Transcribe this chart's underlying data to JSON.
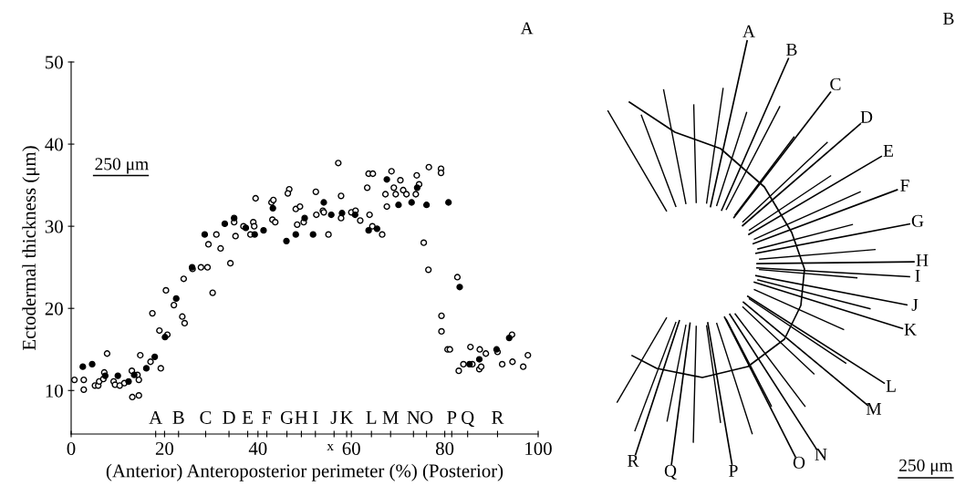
{
  "chart_data": [
    {
      "type": "scatter",
      "title": "A",
      "xlabel": "(Anterior) Anteroposterior perimeter (%) (Posterior)",
      "ylabel": "Ectodermal thickness (μm)",
      "xlim": [
        0,
        100
      ],
      "ylim": [
        4.7,
        50
      ],
      "xticks": [
        0,
        20,
        40,
        60,
        80,
        100,
        {
          "value": 18.1,
          "label": null
        },
        {
          "value": 23.0,
          "label": null
        },
        {
          "value": 28.8,
          "label": null
        },
        {
          "value": 33.8,
          "label": null
        },
        {
          "value": 37.8,
          "label": null
        },
        {
          "value": 41.9,
          "label": null
        },
        {
          "value": 46.2,
          "label": null
        },
        {
          "value": 49.3,
          "label": null
        },
        {
          "value": 52.3,
          "label": null
        },
        {
          "value": 56.3,
          "label": null
        },
        {
          "value": 59.0,
          "label": null
        },
        {
          "value": 64.3,
          "label": null
        },
        {
          "value": 68.4,
          "label": null
        },
        {
          "value": 73.3,
          "label": null
        },
        {
          "value": 76.1,
          "label": null
        },
        {
          "value": 81.5,
          "label": null
        },
        {
          "value": 84.9,
          "label": null
        },
        {
          "value": 91.3,
          "label": null
        }
      ],
      "yticks": [
        10,
        20,
        30,
        40,
        50
      ],
      "grid": false,
      "legend": false,
      "marker": "circle",
      "annotations": [
        "250 μm",
        "A",
        "B",
        "C",
        "D",
        "E",
        "F",
        "G",
        "H",
        "I",
        "J",
        "K",
        "L",
        "M",
        "N",
        "O",
        "P",
        "Q",
        "R",
        "x"
      ],
      "series": [
        {
          "color": "#ffffff",
          "x": [
            0.7,
            2.7,
            2.7,
            5.1,
            5.8,
            6.0,
            6.9,
            7.1,
            7.7,
            9.1,
            9.4,
            10.4,
            11.4,
            13.0,
            13.1,
            14.2,
            14.5,
            14.5,
            14.8,
            17.0,
            19.2,
            17.4,
            18.9,
            20.6,
            20.3,
            22.0,
            23.8,
            24.3,
            24.1,
            26.0,
            27.8,
            29.2,
            29.4,
            30.3,
            31.1,
            32.0,
            34.1,
            34.9,
            35.2,
            36.9,
            39.0,
            39.2,
            38.4,
            39.5,
            42.9,
            43.3,
            43.1,
            43.7,
            46.7,
            46.4,
            48.1,
            49.0,
            48.4,
            49.8,
            52.4,
            52.5,
            53.9,
            54.1,
            55.1,
            57.2,
            57.8,
            57.8,
            60.0,
            60.9,
            61.9,
            63.4,
            63.7,
            64.6,
            63.9,
            64.5,
            66.6,
            67.3,
            67.6,
            68.6,
            69.1,
            69.5,
            70.5,
            71.1,
            71.8,
            73.8,
            74.0,
            74.5,
            76.6,
            79.2,
            79.2,
            75.5,
            76.5,
            82.7,
            79.3,
            79.3,
            80.6,
            81.1,
            85.5,
            87.5,
            88.8,
            84.0,
            85.9,
            83.0,
            87.4,
            87.8,
            91.3,
            92.3,
            94.5,
            94.4,
            96.8,
            97.8
          ],
          "values": [
            11.3,
            11.3,
            10.1,
            10.6,
            10.6,
            11.1,
            11.4,
            12.2,
            14.5,
            11.1,
            10.7,
            10.6,
            10.9,
            12.4,
            9.2,
            11.9,
            11.3,
            9.4,
            14.3,
            13.5,
            12.7,
            19.4,
            17.3,
            16.8,
            22.2,
            20.4,
            19.0,
            18.2,
            23.6,
            24.8,
            25.0,
            25.0,
            27.8,
            21.9,
            29.0,
            27.3,
            25.5,
            30.5,
            28.8,
            30.0,
            30.5,
            30.0,
            29.0,
            33.4,
            32.9,
            33.2,
            30.8,
            30.5,
            34.5,
            34.0,
            32.1,
            32.4,
            30.2,
            30.5,
            34.2,
            31.4,
            31.9,
            31.7,
            29.0,
            37.7,
            33.7,
            31.0,
            31.7,
            31.9,
            30.7,
            34.7,
            36.4,
            36.4,
            31.4,
            30.0,
            29.0,
            33.9,
            32.4,
            36.7,
            34.7,
            33.9,
            35.6,
            34.4,
            33.9,
            33.9,
            36.2,
            35.1,
            37.2,
            37.0,
            36.5,
            28.0,
            24.7,
            23.8,
            19.1,
            17.2,
            15.0,
            15.0,
            15.3,
            15.0,
            14.5,
            13.2,
            13.2,
            12.4,
            12.6,
            12.9,
            14.7,
            13.2,
            13.5,
            16.8,
            12.9,
            14.3
          ]
        },
        {
          "color": "#000000",
          "x": [
            2.5,
            4.5,
            7.3,
            10.0,
            12.3,
            13.5,
            16.1,
            17.9,
            20.1,
            22.5,
            25.9,
            28.6,
            32.9,
            34.9,
            37.4,
            39.3,
            41.2,
            43.2,
            46.1,
            48.1,
            50.0,
            51.8,
            54.1,
            55.7,
            58.0,
            60.8,
            63.7,
            65.5,
            67.6,
            70.1,
            74.1,
            72.9,
            76.1,
            80.8,
            83.2,
            85.3,
            87.4,
            91.1,
            93.8
          ],
          "values": [
            12.9,
            13.2,
            11.8,
            11.8,
            11.1,
            11.9,
            12.7,
            14.1,
            16.5,
            21.2,
            25.0,
            29.0,
            30.3,
            31.0,
            29.8,
            29.0,
            29.5,
            32.2,
            28.2,
            29.0,
            31.0,
            29.0,
            32.9,
            31.4,
            31.6,
            31.4,
            29.5,
            29.7,
            35.7,
            32.6,
            34.7,
            32.9,
            32.6,
            32.9,
            22.6,
            13.2,
            13.8,
            15.0,
            16.4
          ]
        }
      ]
    },
    {
      "type": "other",
      "title": "B",
      "annotations": [
        "A",
        "B",
        "C",
        "D",
        "E",
        "F",
        "G",
        "H",
        "I",
        "J",
        "K",
        "L",
        "M",
        "N",
        "O",
        "P",
        "Q",
        "R",
        "250 μm"
      ]
    }
  ]
}
